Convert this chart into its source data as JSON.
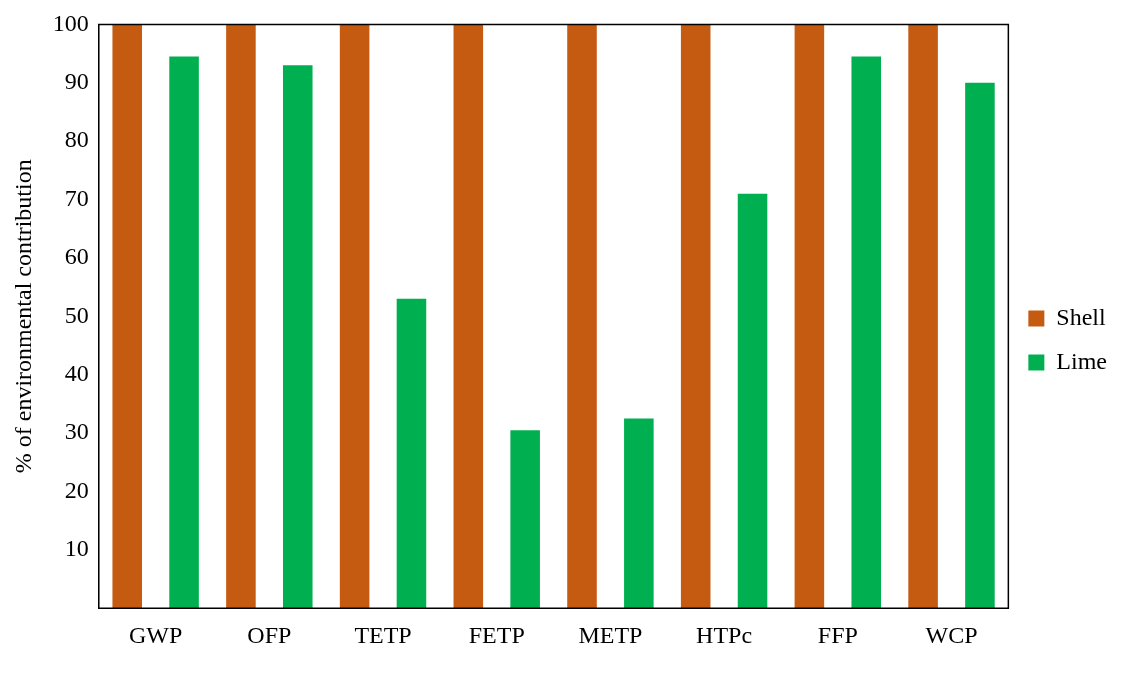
{
  "chart_data": {
    "type": "bar",
    "ylabel": "% of environmental contribution",
    "categories": [
      "GWP",
      "OFP",
      "TETP",
      "FETP",
      "METP",
      "HTPc",
      "FFP",
      "WCP"
    ],
    "series": [
      {
        "name": "Shell",
        "color": "#c55a11",
        "values": [
          100,
          100,
          100,
          100,
          100,
          100,
          100,
          100
        ]
      },
      {
        "name": "Lime",
        "color": "#00b050",
        "values": [
          94.5,
          93,
          53,
          30.5,
          32.5,
          71,
          94.5,
          90
        ]
      }
    ],
    "ylim": [
      0,
      100
    ],
    "yticks": [
      10,
      20,
      30,
      40,
      50,
      60,
      70,
      80,
      90,
      100
    ],
    "grid": false,
    "legend": "right"
  }
}
